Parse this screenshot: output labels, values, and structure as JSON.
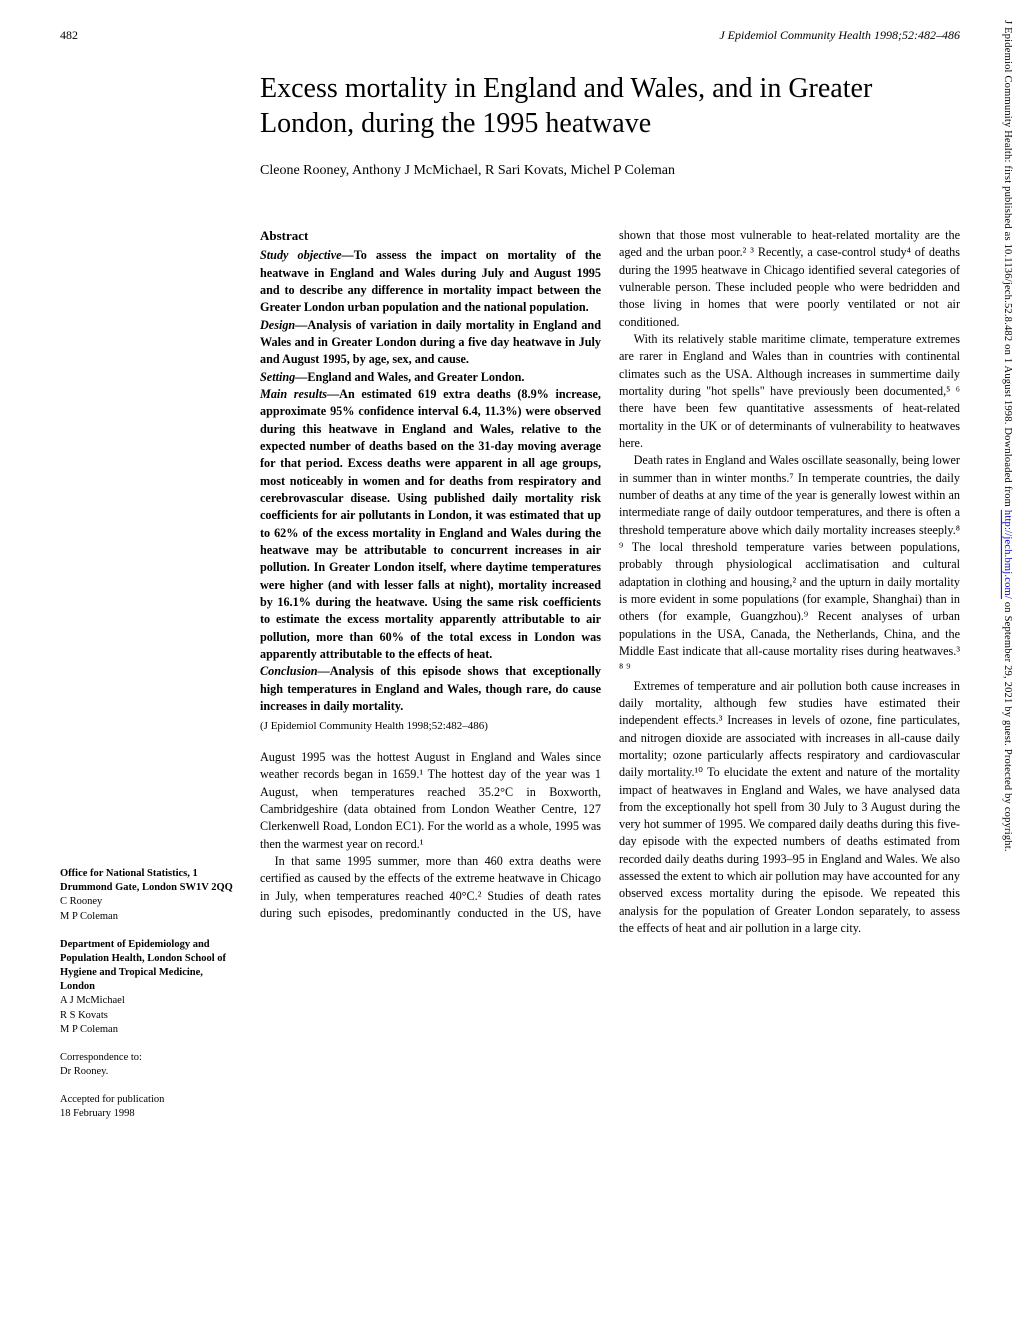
{
  "header": {
    "page_number": "482",
    "journal_ref": "J Epidemiol Community Health 1998;52:482–486"
  },
  "title": "Excess mortality in England and Wales, and in Greater London, during the 1995 heatwave",
  "authors": "Cleone Rooney, Anthony J McMichael, R Sari Kovats, Michel P Coleman",
  "abstract": {
    "heading": "Abstract",
    "objective_label": "Study objective—",
    "objective": "To assess the impact on mortality of the heatwave in England and Wales during July and August 1995 and to describe any difference in mortality impact between the Greater London urban population and the national population.",
    "design_label": "Design—",
    "design": "Analysis of variation in daily mortality in England and Wales and in Greater London during a five day heatwave in July and August 1995, by age, sex, and cause.",
    "setting_label": "Setting—",
    "setting": "England and Wales, and Greater London.",
    "results_label": "Main results—",
    "results": "An estimated 619 extra deaths (8.9% increase, approximate 95% confidence interval 6.4, 11.3%) were observed during this heatwave in England and Wales, relative to the expected number of deaths based on the 31-day moving average for that period. Excess deaths were apparent in all age groups, most noticeably in women and for deaths from respiratory and cerebrovascular disease. Using published daily mortality risk coefficients for air pollutants in London, it was estimated that up to 62% of the excess mortality in England and Wales during the heatwave may be attributable to concurrent increases in air pollution. In Greater London itself, where daytime temperatures were higher (and with lesser falls at night), mortality increased by 16.1% during the heatwave. Using the same risk coefficients to estimate the excess mortality apparently attributable to air pollution, more than 60% of the total excess in London was apparently attributable to the effects of heat.",
    "conclusion_label": "Conclusion—",
    "conclusion": "Analysis of this episode shows that exceptionally high temperatures in England and Wales, though rare, do cause increases in daily mortality.",
    "citation": "(J Epidemiol Community Health 1998;52:482–486)"
  },
  "body": {
    "p1": "August 1995 was the hottest August in England and Wales since weather records began in 1659.¹ The hottest day of the year was 1 August, when temperatures reached 35.2°C in Boxworth, Cambridgeshire (data obtained from London Weather Centre, 127 Clerkenwell Road, London EC1). For the world as a whole, 1995 was then the warmest year on record.¹",
    "p2": "In that same 1995 summer, more than 460 extra deaths were certified as caused by the effects of the extreme heatwave in Chicago in July, when temperatures reached 40°C.² Studies of death rates during such episodes, predominantly conducted in the US, have shown that those most vulnerable to heat-related mortality are the aged and the urban poor.² ³ Recently, a case-control study⁴ of deaths during the 1995 heatwave in Chicago identified several categories of vulnerable person. These included people who were bedridden and those living in homes that were poorly ventilated or not air conditioned.",
    "p3": "With its relatively stable maritime climate, temperature extremes are rarer in England and Wales than in countries with continental climates such as the USA. Although increases in summertime daily mortality during \"hot spells\" have previously been documented,⁵ ⁶ there have been few quantitative assessments of heat-related mortality in the UK or of determinants of vulnerability to heatwaves here.",
    "p4": "Death rates in England and Wales oscillate seasonally, being lower in summer than in winter months.⁷ In temperate countries, the daily number of deaths at any time of the year is generally lowest within an intermediate range of daily outdoor temperatures, and there is often a threshold temperature above which daily mortality increases steeply.⁸ ⁹ The local threshold temperature varies between populations, probably through physiological acclimatisation and cultural adaptation in clothing and housing,² and the upturn in daily mortality is more evident in some populations (for example, Shanghai) than in others (for example, Guangzhou).⁹ Recent analyses of urban populations in the USA, Canada, the Netherlands, China, and the Middle East indicate that all-cause mortality rises during heatwaves.³ ⁸ ⁹",
    "p5": "Extremes of temperature and air pollution both cause increases in daily mortality, although few studies have estimated their independent effects.³ Increases in levels of ozone, fine particulates, and nitrogen dioxide are associated with increases in all-cause daily mortality; ozone particularly affects respiratory and cardiovascular daily mortality.¹⁰ To elucidate the extent and nature of the mortality impact of heatwaves in England and Wales, we have analysed data from the exceptionally hot spell from 30 July to 3 August during the very hot summer of 1995. We compared daily deaths during this five-day episode with the expected numbers of deaths estimated from recorded daily deaths during 1993–95 in England and Wales. We also assessed the extent to which air pollution may have accounted for any observed excess mortality during the episode. We repeated this analysis for the population of Greater London separately, to assess the effects of heat and air pollution in a large city."
  },
  "affiliations": {
    "a1_heading": "Office for National Statistics, 1 Drummond Gate, London SW1V 2QQ",
    "a1_people": "C Rooney\nM P Coleman",
    "a2_heading": "Department of Epidemiology and Population Health, London School of Hygiene and Tropical Medicine, London",
    "a2_people": "A J McMichael\nR S Kovats\nM P Coleman",
    "corr": "Correspondence to:\nDr Rooney.",
    "accepted": "Accepted for publication\n18 February 1998"
  },
  "sidebar_note": {
    "prefix": "J Epidemiol Community Health: first published as 10.1136/jech.52.8.482 on 1 August 1998. Downloaded from ",
    "link": "http://jech.bmj.com/",
    "suffix": " on September 29, 2021 by guest. Protected by copyright."
  }
}
